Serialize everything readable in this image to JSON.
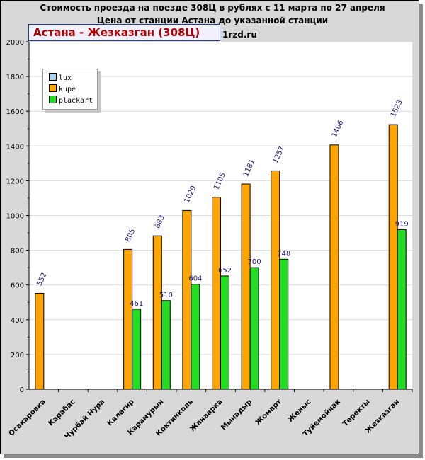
{
  "titles": {
    "line1": "Стоимость проезда на поезде 308Ц в рублях с 11 марта по 27 апреля",
    "line2": "Цена от станции Астана до указанной станции",
    "site": "1rzd.ru"
  },
  "route_label": "Астана - Жезказган (308Ц)",
  "colors": {
    "lux": "#a8d4f0",
    "kupe": "#ffa500",
    "plackart": "#22dd22",
    "value_label": "#1a1a80"
  },
  "chart_data": {
    "type": "bar",
    "categories": [
      "Осакаровка",
      "Карабас",
      "Чурбай Нура",
      "Калагир",
      "Карамурын",
      "Коктинколь",
      "Жанаарка",
      "Мынадыр",
      "Жомарт",
      "Женыс",
      "Туйемойнак",
      "Теректы",
      "Жезказган"
    ],
    "series": [
      {
        "name": "lux",
        "values": [
          null,
          null,
          null,
          null,
          null,
          null,
          null,
          null,
          null,
          null,
          null,
          null,
          null
        ]
      },
      {
        "name": "kupe",
        "values": [
          552,
          null,
          null,
          805,
          883,
          1029,
          1105,
          1181,
          1257,
          null,
          1406,
          null,
          1523
        ]
      },
      {
        "name": "plackart",
        "values": [
          null,
          null,
          null,
          461,
          510,
          604,
          652,
          700,
          748,
          null,
          null,
          null,
          919
        ]
      }
    ],
    "y_ticks": [
      0,
      200,
      400,
      600,
      800,
      1000,
      1200,
      1400,
      1600,
      1800,
      2000
    ],
    "ylim": [
      0,
      2000
    ],
    "grid": true,
    "legend_position": "top-left"
  }
}
